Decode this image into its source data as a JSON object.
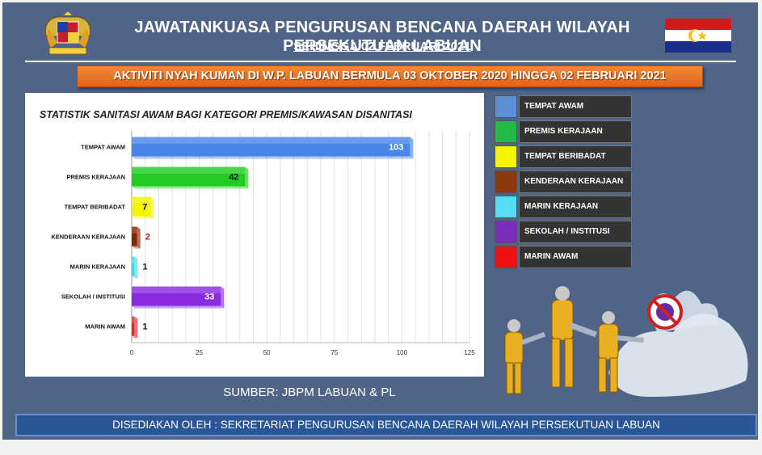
{
  "header": {
    "title": "JAWATANKUASA PENGURUSAN BENCANA DAERAH WILAYAH PERSEKUTUAN  LABUAN",
    "subtitle": "SEHINGGA 02 FEBRUARI 2021"
  },
  "banner": {
    "text": "AKTIVITI NYAH KUMAN DI W.P. LABUAN BERMULA 03 OKTOBER 2020 HINGGA 02 FEBRUARI 2021"
  },
  "source": "SUMBER: JBPM LABUAN & PL",
  "footer": "DISEDIAKAN OLEH : SEKRETARIAT PENGURUSAN BENCANA DAERAH WILAYAH PERSEKUTUAN LABUAN",
  "colors": {
    "background": "#4f6486",
    "banner": "#e8731f",
    "footer": "#2a5596"
  },
  "icons": {
    "crest": "malaysia-coat-of-arms-icon",
    "flag": "labuan-flag-icon"
  },
  "chart_data": {
    "type": "bar",
    "orientation": "horizontal",
    "title": "STATISTIK SANITASI AWAM BAGI KATEGORI PREMIS/KAWASAN DISANITASI",
    "categories": [
      "TEMPAT AWAM",
      "PREMIS KERAJAAN",
      "TEMPAT BERIBADAT",
      "KENDERAAN KERAJAAN",
      "MARIN KERAJAAN",
      "SEKOLAH / INSTITUSI",
      "MARIN AWAM"
    ],
    "values": [
      103,
      42,
      7,
      2,
      1,
      33,
      1
    ],
    "bar_colors": [
      "#4a86e8",
      "#22cc22",
      "#f5f500",
      "#8b2500",
      "#33ddf0",
      "#8a2be2",
      "#ee2222"
    ],
    "value_label_colors": [
      "#ffffff",
      "#111111",
      "#111111",
      "#a02020",
      "#111111",
      "#ffffff",
      "#111111"
    ],
    "xlim": [
      0,
      125
    ],
    "xticks": [
      0,
      25,
      50,
      75,
      100,
      125
    ],
    "grid": true,
    "legend": {
      "position": "right",
      "entries": [
        {
          "label": "TEMPAT AWAM",
          "color": "#5b8fd6"
        },
        {
          "label": "PREMIS KERAJAAN",
          "color": "#22bb44"
        },
        {
          "label": "TEMPAT BERIBADAT",
          "color": "#f5f500"
        },
        {
          "label": "KENDERAAN KERAJAAN",
          "color": "#8b3a10"
        },
        {
          "label": "MARIN KERAJAAN",
          "color": "#55ddf5"
        },
        {
          "label": "SEKOLAH / INSTITUSI",
          "color": "#7a2db8"
        },
        {
          "label": "MARIN AWAM",
          "color": "#ee1111"
        }
      ]
    }
  }
}
